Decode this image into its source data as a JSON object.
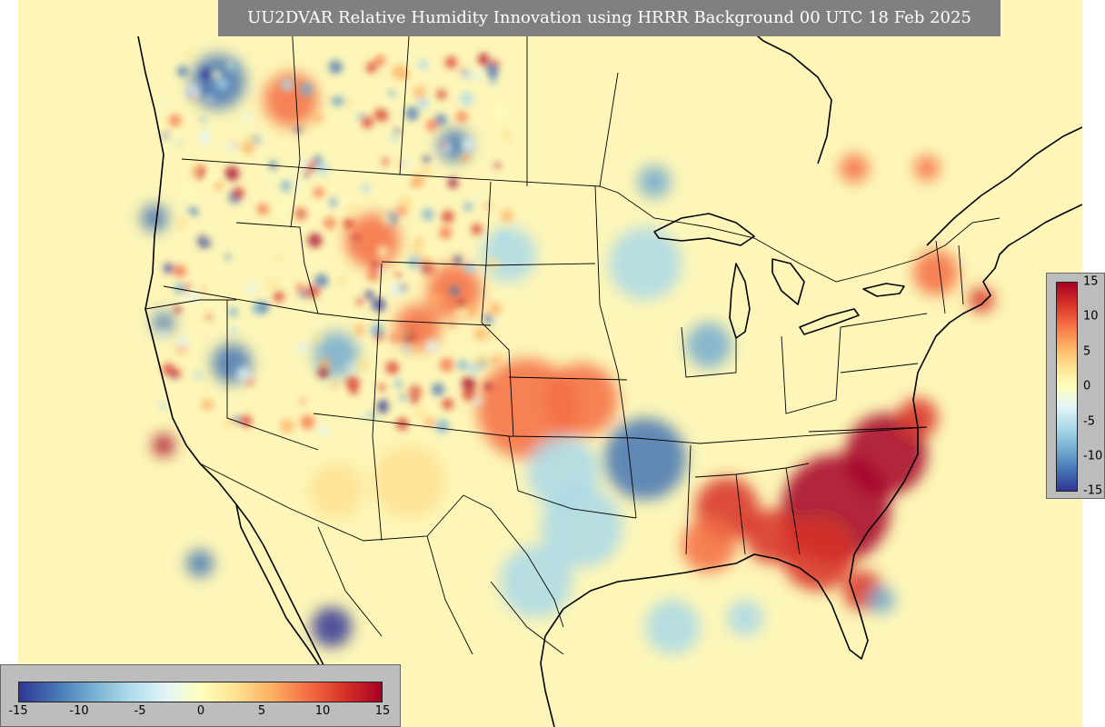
{
  "title": "UU2DVAR Relative Humidity Innovation using HRRR Background 00 UTC 18 Feb 2025",
  "colorbar": {
    "min": -15,
    "max": 15,
    "colors": [
      "#313695",
      "#4575b4",
      "#74add1",
      "#abd9e9",
      "#e0f3f8",
      "#ffffbf",
      "#fee090",
      "#fdae61",
      "#f46d43",
      "#d73027",
      "#a50026"
    ],
    "vertical_ticks": [
      "15",
      "10",
      "5",
      "0",
      "-5",
      "-10",
      "-15"
    ],
    "horizontal_ticks": [
      "-15",
      "-10",
      "-5",
      "0",
      "5",
      "10",
      "15"
    ]
  },
  "map_features": [
    "pacific-ocean",
    "gulf-of-mexico",
    "atlantic-ocean",
    "great-lakes",
    "hudson-bay",
    "us-state-borders",
    "canada-border",
    "mexico-border"
  ],
  "field_summary": {
    "positive_regions": [
      "southeast-us",
      "florida",
      "carolinas",
      "central-plains",
      "northern-rockies",
      "great-lakes-east",
      "northeast"
    ],
    "negative_regions": [
      "pacific-northwest-coast",
      "great-basin",
      "texas-oklahoma",
      "mississippi-valley",
      "upper-midwest",
      "southern-california-offshore"
    ]
  }
}
